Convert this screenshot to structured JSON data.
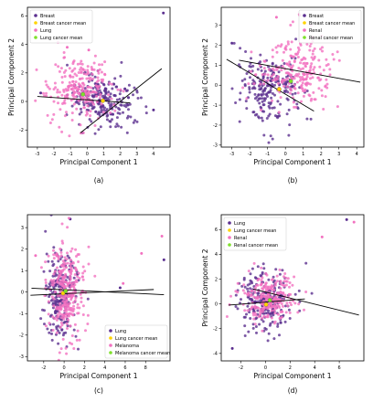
{
  "chart_data": [
    {
      "type": "scatter",
      "caption": "(a)",
      "xlabel": "Principal Component 1",
      "ylabel": "Principal Component 2",
      "xlim": [
        -3.6,
        5.0
      ],
      "ylim": [
        -3.2,
        6.6
      ],
      "xticks": [
        -3,
        -2,
        -1,
        0,
        1,
        2,
        3,
        4
      ],
      "yticks": [
        -2,
        0,
        2,
        4,
        6
      ],
      "legend_position": "top-left",
      "legend": [
        "Breast",
        "Breast cancer mean",
        "Lung",
        "Lung cancer mean"
      ],
      "series": [
        {
          "name": "Breast",
          "kind": "points",
          "color": "#5b2f8f",
          "cloud": {
            "cx": 0.9,
            "cy": 0.1,
            "sx": 1.0,
            "sy": 0.9,
            "n": 230
          },
          "extra": [
            [
              4.6,
              6.2
            ],
            [
              4.0,
              -0.6
            ],
            [
              -2.8,
              0.6
            ]
          ]
        },
        {
          "name": "Lung",
          "kind": "points",
          "color": "#f272c0",
          "cloud": {
            "cx": -0.5,
            "cy": 0.8,
            "sx": 0.95,
            "sy": 1.1,
            "n": 240
          },
          "extra": [
            [
              0.1,
              3.6
            ],
            [
              -1.2,
              3.8
            ]
          ]
        },
        {
          "name": "Breast cancer mean",
          "kind": "mean",
          "color": "#ffd400",
          "point": [
            0.95,
            0.05
          ]
        },
        {
          "name": "Lung cancer mean",
          "kind": "mean",
          "color": "#7fe02b",
          "point": [
            -0.25,
            0.5
          ]
        }
      ],
      "principal_lines": [
        {
          "color": "#000000",
          "from": [
            -3.0,
            0.35
          ],
          "to": [
            2.6,
            -0.1
          ]
        },
        {
          "color": "#000000",
          "from": [
            -0.4,
            -2.2
          ],
          "to": [
            4.5,
            2.3
          ]
        }
      ]
    },
    {
      "type": "scatter",
      "caption": "(b)",
      "xlabel": "Principal Component 1",
      "ylabel": "Principal Component 2",
      "xlim": [
        -3.6,
        4.4
      ],
      "ylim": [
        -3.1,
        3.9
      ],
      "xticks": [
        -3,
        -2,
        -1,
        0,
        1,
        2,
        3,
        4
      ],
      "yticks": [
        -3,
        -2,
        -1,
        0,
        1,
        2,
        3
      ],
      "legend_position": "top-right",
      "legend": [
        "Breast",
        "Breast cancer mean",
        "Renal",
        "Renal cancer mean"
      ],
      "series": [
        {
          "name": "Breast",
          "kind": "points",
          "color": "#5b2f8f",
          "cloud": {
            "cx": -0.9,
            "cy": -0.3,
            "sx": 0.85,
            "sy": 0.9,
            "n": 220
          },
          "extra": [
            [
              -3.0,
              2.1
            ]
          ]
        },
        {
          "name": "Renal",
          "kind": "points",
          "color": "#f272c0",
          "cloud": {
            "cx": 0.6,
            "cy": 0.7,
            "sx": 1.05,
            "sy": 0.85,
            "n": 240
          },
          "extra": [
            [
              0.8,
              3.5
            ],
            [
              -0.5,
              3.4
            ]
          ]
        },
        {
          "name": "Breast cancer mean",
          "kind": "mean",
          "color": "#ffd400",
          "point": [
            -0.35,
            -0.2
          ]
        },
        {
          "name": "Renal cancer mean",
          "kind": "mean",
          "color": "#7fe02b",
          "point": [
            0.3,
            0.2
          ]
        }
      ],
      "principal_lines": [
        {
          "color": "#000000",
          "from": [
            -2.6,
            1.25
          ],
          "to": [
            4.2,
            0.15
          ]
        },
        {
          "color": "#000000",
          "from": [
            -3.3,
            1.3
          ],
          "to": [
            1.6,
            -1.3
          ]
        }
      ]
    },
    {
      "type": "scatter",
      "caption": "(c)",
      "xlabel": "Principal Component 1",
      "ylabel": "",
      "xlim": [
        -3.6,
        10.4
      ],
      "ylim": [
        -3.2,
        3.6
      ],
      "xticks": [
        -2,
        0,
        2,
        4,
        6,
        8
      ],
      "yticks": [
        -3,
        -2,
        -1,
        0,
        1,
        2,
        3
      ],
      "legend_position": "bottom-right",
      "legend": [
        "Lung",
        "Lung cancer mean",
        "Melanoma",
        "Melanoma cancer mean"
      ],
      "series": [
        {
          "name": "Lung",
          "kind": "points",
          "color": "#5b2f8f",
          "cloud": {
            "cx": -0.3,
            "cy": -0.1,
            "sx": 0.8,
            "sy": 1.05,
            "n": 230
          },
          "extra": [
            [
              0.6,
              3.4
            ],
            [
              5.5,
              0.2
            ],
            [
              9.8,
              1.5
            ]
          ]
        },
        {
          "name": "Melanoma",
          "kind": "points",
          "color": "#f272c0",
          "cloud": {
            "cx": 0.2,
            "cy": 0.0,
            "sx": 0.9,
            "sy": 1.05,
            "n": 300
          },
          "extra": [
            [
              9.6,
              2.6
            ],
            [
              7.6,
              1.8
            ],
            [
              5.8,
              0.4
            ],
            [
              -2.8,
              1.7
            ]
          ]
        },
        {
          "name": "Lung cancer mean",
          "kind": "mean",
          "color": "#ffd400",
          "point": [
            -0.1,
            -0.05
          ]
        },
        {
          "name": "Melanoma cancer mean",
          "kind": "mean",
          "color": "#7fe02b",
          "point": [
            0.15,
            0.05
          ]
        }
      ],
      "principal_lines": [
        {
          "color": "#000000",
          "from": [
            -3.2,
            0.18
          ],
          "to": [
            9.8,
            -0.12
          ]
        },
        {
          "color": "#000000",
          "from": [
            -3.3,
            -0.15
          ],
          "to": [
            8.8,
            0.12
          ]
        }
      ]
    },
    {
      "type": "scatter",
      "caption": "(d)",
      "xlabel": "Principal Component 1",
      "ylabel": "Principal Component 2",
      "xlim": [
        -3.6,
        8.0
      ],
      "ylim": [
        -4.6,
        7.2
      ],
      "xticks": [
        -2,
        0,
        2,
        4,
        6
      ],
      "yticks": [
        -4,
        -2,
        0,
        2,
        4,
        6
      ],
      "legend_position": "top-left",
      "legend": [
        "Lung",
        "Lung cancer mean",
        "Renal",
        "Renal cancer mean"
      ],
      "series": [
        {
          "name": "Lung",
          "kind": "points",
          "color": "#5b2f8f",
          "cloud": {
            "cx": 0.0,
            "cy": 0.2,
            "sx": 1.1,
            "sy": 1.2,
            "n": 240
          },
          "extra": [
            [
              6.6,
              6.8
            ],
            [
              -2.7,
              -3.6
            ]
          ]
        },
        {
          "name": "Renal",
          "kind": "points",
          "color": "#f272c0",
          "cloud": {
            "cx": 0.3,
            "cy": 0.5,
            "sx": 1.1,
            "sy": 1.0,
            "n": 240
          },
          "extra": [
            [
              7.2,
              6.6
            ],
            [
              4.6,
              5.4
            ]
          ]
        },
        {
          "name": "Lung cancer mean",
          "kind": "mean",
          "color": "#ffd400",
          "point": [
            0.05,
            -0.05
          ]
        },
        {
          "name": "Renal cancer mean",
          "kind": "mean",
          "color": "#7fe02b",
          "point": [
            0.35,
            0.3
          ]
        }
      ],
      "principal_lines": [
        {
          "color": "#000000",
          "from": [
            -3.0,
            -0.1
          ],
          "to": [
            3.2,
            0.4
          ]
        },
        {
          "color": "#000000",
          "from": [
            -1.0,
            1.2
          ],
          "to": [
            7.6,
            -0.9
          ]
        }
      ]
    }
  ]
}
